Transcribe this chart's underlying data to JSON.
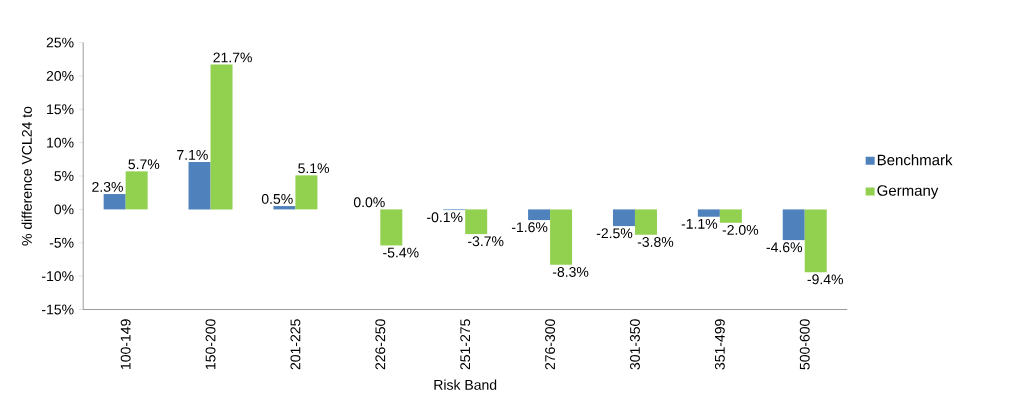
{
  "chart_data": {
    "type": "bar",
    "xlabel": "Risk Band",
    "ylabel": "% difference VCL24 to",
    "categories": [
      "100-149",
      "150-200",
      "201-225",
      "226-250",
      "251-275",
      "276-300",
      "301-350",
      "351-499",
      "500-600"
    ],
    "series": [
      {
        "name": "Benchmark",
        "color": "#4f81bd",
        "values": [
          2.3,
          7.1,
          0.5,
          0.0,
          -0.1,
          -1.6,
          -2.5,
          -1.1,
          -4.6
        ],
        "value_labels": [
          "2.3%",
          "7.1%",
          "0.5%",
          "0.0%",
          "-0.1%",
          "-1.6%",
          "-2.5%",
          "-1.1%",
          "-4.6%"
        ]
      },
      {
        "name": "Germany",
        "color": "#92d050",
        "values": [
          5.7,
          21.7,
          5.1,
          -5.4,
          -3.7,
          -8.3,
          -3.8,
          -2.0,
          -9.4
        ],
        "value_labels": [
          "5.7%",
          "21.7%",
          "5.1%",
          "-5.4%",
          "-3.7%",
          "-8.3%",
          "-3.8%",
          "-2.0%",
          "-9.4%"
        ]
      }
    ],
    "ylim": [
      -15,
      25
    ],
    "yticks": [
      {
        "value": -15,
        "label": "-15%"
      },
      {
        "value": -10,
        "label": "-10%"
      },
      {
        "value": -5,
        "label": "-5%"
      },
      {
        "value": 0,
        "label": "0%"
      },
      {
        "value": 5,
        "label": "5%"
      },
      {
        "value": 10,
        "label": "10%"
      },
      {
        "value": 15,
        "label": "15%"
      },
      {
        "value": 20,
        "label": "20%"
      },
      {
        "value": 25,
        "label": "25%"
      }
    ],
    "legend": "right",
    "grid": false
  }
}
